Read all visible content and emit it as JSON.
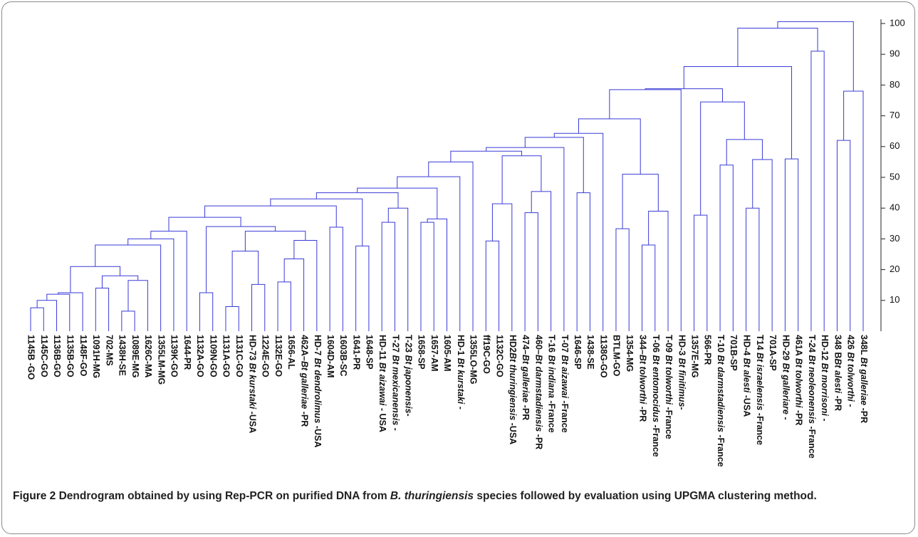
{
  "chart_data": {
    "type": "dendrogram",
    "color": "#3a3ad8",
    "ylim": [
      0,
      100
    ],
    "yticks": [
      10,
      20,
      30,
      40,
      50,
      60,
      70,
      80,
      90,
      100
    ],
    "leaves": [
      {
        "label": "1145B -GO"
      },
      {
        "label": "1145C-GO"
      },
      {
        "label": "1136B-GO"
      },
      {
        "label": "1135B-GO"
      },
      {
        "label": "1148F-GO"
      },
      {
        "label": "1091H-MG"
      },
      {
        "label": "702-MS"
      },
      {
        "label": "1438H-SE"
      },
      {
        "label": "1089E-MG"
      },
      {
        "label": "1626C-MA"
      },
      {
        "label": "1355LM-MG"
      },
      {
        "label": "1139K-GO"
      },
      {
        "label": "1644-PR"
      },
      {
        "label": "1132A-GO"
      },
      {
        "label": "1109N-GO"
      },
      {
        "label": "1131A-GO"
      },
      {
        "label": "1131C-GO"
      },
      {
        "label": "HD-73 Bt kurstaki -USA",
        "italic": "Bt kurstaki"
      },
      {
        "label": "1224E-GO"
      },
      {
        "label": "1132E-GO"
      },
      {
        "label": "1656-AL"
      },
      {
        "label": "462A–Bt galleriae -PR",
        "italic": "Bt galleriae"
      },
      {
        "label": "HD-7 Bt dendrolimus -USA",
        "italic": "Bt dendrolimus"
      },
      {
        "label": "1604D-AM"
      },
      {
        "label": "1603B-SC"
      },
      {
        "label": "1641-PR"
      },
      {
        "label": "1648-SP"
      },
      {
        "label": "HD-11 Bt aizawai - USA",
        "italic": "Bt aizawai"
      },
      {
        "label": "T-27 Bt mexicanensis -",
        "italic": "Bt mexicanensis"
      },
      {
        "label": "T-23 Bt japonensis-",
        "italic": "Bt japonensis"
      },
      {
        "label": "1658-SP"
      },
      {
        "label": "1657-AM"
      },
      {
        "label": "1605-AM"
      },
      {
        "label": "HD-1 Bt kurstaki -",
        "italic": "Bt kurstaki"
      },
      {
        "label": "1355LO-MG"
      },
      {
        "label": "ff19C-GO"
      },
      {
        "label": "1132C-GO"
      },
      {
        "label": "HD2Bt thuringiensis -USA",
        "italic": "Bt thuringiensis"
      },
      {
        "label": "474–Bt galleriae -PR",
        "italic": "Bt galleriae"
      },
      {
        "label": "460–Bt darmstadiensis -PR",
        "italic": "Bt darmstadiensis"
      },
      {
        "label": "T-16 Bt indiana -France",
        "italic": "Bt indiana"
      },
      {
        "label": "T-07 Bt aizawai -France",
        "italic": "Bt aizawai"
      },
      {
        "label": "1646-SP"
      },
      {
        "label": "1438-SE"
      },
      {
        "label": "1138G-GO"
      },
      {
        "label": "BTLM-GO"
      },
      {
        "label": "1354-MG"
      },
      {
        "label": "344–Bt tolworthi -PR",
        "italic": "Bt tolworthi"
      },
      {
        "label": "T-06 Bt entomocidus -France",
        "italic": "Bt entomocidus"
      },
      {
        "label": "T-09 Bt tolworthi -France",
        "italic": "Bt tolworthi"
      },
      {
        "label": "HD-3 Bt finitimus-",
        "italic": "Bt finitimus"
      },
      {
        "label": "1357E-MG"
      },
      {
        "label": "566-PR"
      },
      {
        "label": "T-10 Bt darmstadiensis -France",
        "italic": "Bt darmstadiensis"
      },
      {
        "label": "701B-SP"
      },
      {
        "label": "HD-4 Bt alesti -USA",
        "italic": "Bt alesti"
      },
      {
        "label": "T14 Bt israelensis -France",
        "italic": "Bt israelensis"
      },
      {
        "label": "701A-SP"
      },
      {
        "label": "HD-29 Bt galleriare -",
        "italic": "Bt galleriare"
      },
      {
        "label": "461A Bt tolworthi -PR",
        "italic": "Bt tolworthi"
      },
      {
        "label": "T-24 Bt neoleonensis -France",
        "italic": "Bt neoleonensis"
      },
      {
        "label": "HD-12 Bt morrisoni -",
        "italic": "Bt morrisoni"
      },
      {
        "label": "348 BBt alesti -PR",
        "italic": "Bt alesti"
      },
      {
        "label": "426 Bt tolworthi -",
        "italic": "Bt tolworthi"
      },
      {
        "label": "348L Bt galleriae -PR",
        "italic": "Bt galleriae"
      }
    ],
    "merges": [
      {
        "children": [
          0,
          1
        ],
        "height": 7.6
      },
      {
        "children": [
          65,
          2
        ],
        "height": 10
      },
      {
        "children": [
          66,
          3
        ],
        "height": 12
      },
      {
        "children": [
          67,
          4
        ],
        "height": 12.5
      },
      {
        "children": [
          5,
          6
        ],
        "height": 14
      },
      {
        "children": [
          7,
          8
        ],
        "height": 6.5
      },
      {
        "children": [
          70,
          9
        ],
        "height": 16.5
      },
      {
        "children": [
          69,
          71
        ],
        "height": 18
      },
      {
        "children": [
          68,
          72
        ],
        "height": 21
      },
      {
        "children": [
          73,
          10
        ],
        "height": 28
      },
      {
        "children": [
          74,
          11
        ],
        "height": 30
      },
      {
        "children": [
          75,
          12
        ],
        "height": 32.5
      },
      {
        "children": [
          13,
          14
        ],
        "height": 12.5
      },
      {
        "children": [
          15,
          16
        ],
        "height": 8
      },
      {
        "children": [
          17,
          18
        ],
        "height": 15.2
      },
      {
        "children": [
          78,
          79
        ],
        "height": 26
      },
      {
        "children": [
          19,
          20
        ],
        "height": 16
      },
      {
        "children": [
          81,
          21
        ],
        "height": 23.5
      },
      {
        "children": [
          82,
          22
        ],
        "height": 29.5
      },
      {
        "children": [
          80,
          83
        ],
        "height": 32.5
      },
      {
        "children": [
          77,
          84
        ],
        "height": 34
      },
      {
        "children": [
          76,
          85
        ],
        "height": 37
      },
      {
        "children": [
          23,
          24
        ],
        "height": 33.8
      },
      {
        "children": [
          86,
          87
        ],
        "height": 40.7
      },
      {
        "children": [
          25,
          26
        ],
        "height": 27.7
      },
      {
        "children": [
          88,
          89
        ],
        "height": 43
      },
      {
        "children": [
          27,
          28
        ],
        "height": 35.4
      },
      {
        "children": [
          91,
          29
        ],
        "height": 40
      },
      {
        "children": [
          90,
          92
        ],
        "height": 45
      },
      {
        "children": [
          30,
          31
        ],
        "height": 35.4
      },
      {
        "children": [
          94,
          32
        ],
        "height": 36.5
      },
      {
        "children": [
          93,
          95
        ],
        "height": 46.5
      },
      {
        "children": [
          96,
          33
        ],
        "height": 50.2
      },
      {
        "children": [
          97,
          34
        ],
        "height": 55
      },
      {
        "children": [
          35,
          36
        ],
        "height": 29.3
      },
      {
        "children": [
          99,
          37
        ],
        "height": 41.4
      },
      {
        "children": [
          38,
          39
        ],
        "height": 38.5
      },
      {
        "children": [
          101,
          40
        ],
        "height": 45.4
      },
      {
        "children": [
          100,
          102
        ],
        "height": 57
      },
      {
        "children": [
          98,
          103
        ],
        "height": 58.5
      },
      {
        "children": [
          104,
          41
        ],
        "height": 59.7
      },
      {
        "children": [
          42,
          43
        ],
        "height": 45
      },
      {
        "children": [
          105,
          106
        ],
        "height": 63
      },
      {
        "children": [
          107,
          44
        ],
        "height": 64.3
      },
      {
        "children": [
          45,
          46
        ],
        "height": 33.3
      },
      {
        "children": [
          47,
          48
        ],
        "height": 28
      },
      {
        "children": [
          110,
          49
        ],
        "height": 39
      },
      {
        "children": [
          109,
          111
        ],
        "height": 51
      },
      {
        "children": [
          108,
          112
        ],
        "height": 69
      },
      {
        "children": [
          113,
          50
        ],
        "height": 78.5
      },
      {
        "children": [
          51,
          52
        ],
        "height": 37.7
      },
      {
        "children": [
          53,
          54
        ],
        "height": 54
      },
      {
        "children": [
          55,
          56
        ],
        "height": 40
      },
      {
        "children": [
          117,
          57
        ],
        "height": 55.8
      },
      {
        "children": [
          116,
          118
        ],
        "height": 62.3
      },
      {
        "children": [
          115,
          119
        ],
        "height": 74.5
      },
      {
        "children": [
          114,
          120
        ],
        "height": 78.8
      },
      {
        "children": [
          58,
          59
        ],
        "height": 56
      },
      {
        "children": [
          121,
          122
        ],
        "height": 86
      },
      {
        "children": [
          60,
          61
        ],
        "height": 91
      },
      {
        "children": [
          123,
          124
        ],
        "height": 98.5
      },
      {
        "children": [
          62,
          63
        ],
        "height": 62
      },
      {
        "children": [
          126,
          64
        ],
        "height": 78
      },
      {
        "children": [
          125,
          127
        ],
        "height": 100.6
      }
    ],
    "caption": {
      "label": "Figure 2",
      "before": "Dendrogram obtained by using Rep-PCR on purified DNA from",
      "italic": "B. thuringiensis",
      "after": "species followed by evaluation using UPGMA clustering method."
    }
  }
}
